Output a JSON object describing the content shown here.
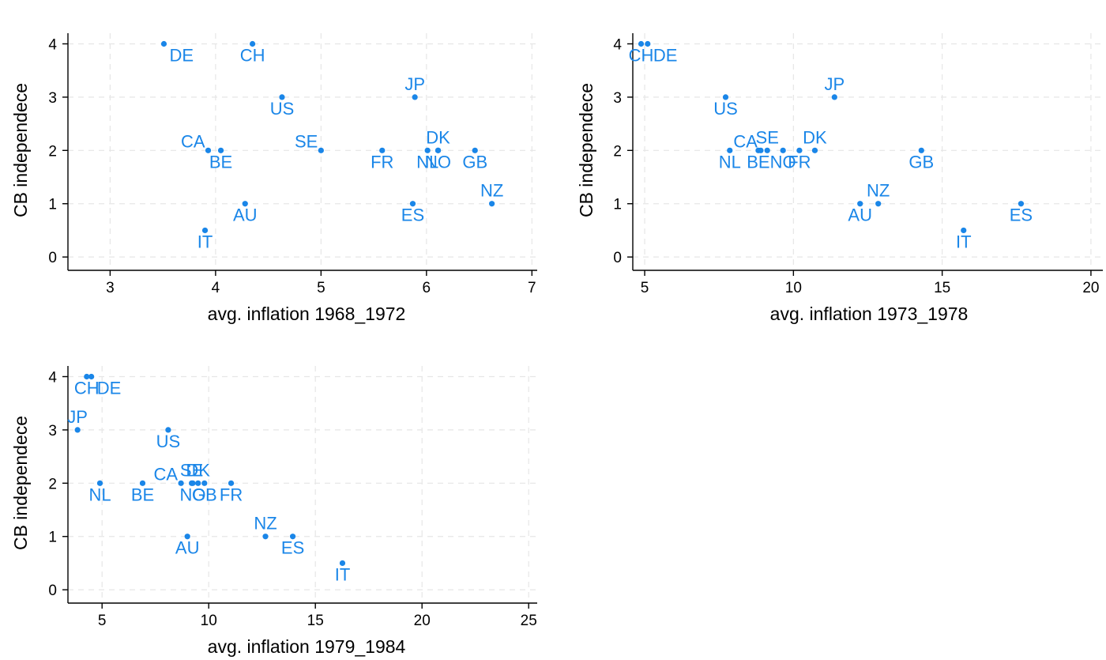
{
  "chart_data": [
    {
      "type": "scatter",
      "xlabel": "avg. inflation 1968_1972",
      "ylabel": "CB independece",
      "xlim": [
        2.6,
        7.05
      ],
      "ylim": [
        -0.25,
        4.2
      ],
      "xticks": [
        3,
        4,
        5,
        6,
        7
      ],
      "yticks": [
        0,
        1,
        2,
        3,
        4
      ],
      "points": [
        {
          "label": "DE",
          "x": 3.51,
          "y": 4,
          "pos": "below-right"
        },
        {
          "label": "CH",
          "x": 4.35,
          "y": 4,
          "pos": "below"
        },
        {
          "label": "JP",
          "x": 5.89,
          "y": 3,
          "pos": "above"
        },
        {
          "label": "US",
          "x": 4.63,
          "y": 3,
          "pos": "below"
        },
        {
          "label": "CA",
          "x": 3.93,
          "y": 2,
          "pos": "above-left"
        },
        {
          "label": "BE",
          "x": 4.05,
          "y": 2,
          "pos": "below"
        },
        {
          "label": "SE",
          "x": 5.0,
          "y": 2,
          "pos": "above-left"
        },
        {
          "label": "FR",
          "x": 5.58,
          "y": 2,
          "pos": "below"
        },
        {
          "label": "DK",
          "x": 6.11,
          "y": 2,
          "pos": "above"
        },
        {
          "label": "NL",
          "x": 6.01,
          "y": 2,
          "pos": "below"
        },
        {
          "label": "NO",
          "x": 6.11,
          "y": 2,
          "pos": "below"
        },
        {
          "label": "GB",
          "x": 6.46,
          "y": 2,
          "pos": "below"
        },
        {
          "label": "NZ",
          "x": 6.62,
          "y": 1,
          "pos": "above"
        },
        {
          "label": "AU",
          "x": 4.28,
          "y": 1,
          "pos": "below"
        },
        {
          "label": "ES",
          "x": 5.87,
          "y": 1,
          "pos": "below"
        },
        {
          "label": "IT",
          "x": 3.9,
          "y": 0.5,
          "pos": "below"
        }
      ]
    },
    {
      "type": "scatter",
      "xlabel": "avg. inflation 1973_1978",
      "ylabel": "CB independece",
      "xlim": [
        4.6,
        20.4
      ],
      "ylim": [
        -0.25,
        4.2
      ],
      "xticks": [
        5,
        10,
        15,
        20
      ],
      "yticks": [
        0,
        1,
        2,
        3,
        4
      ],
      "points": [
        {
          "label": "CH",
          "x": 4.88,
          "y": 4,
          "pos": "below"
        },
        {
          "label": "DE",
          "x": 5.1,
          "y": 4,
          "pos": "below-right"
        },
        {
          "label": "JP",
          "x": 11.38,
          "y": 3,
          "pos": "above"
        },
        {
          "label": "US",
          "x": 7.72,
          "y": 3,
          "pos": "below"
        },
        {
          "label": "CA",
          "x": 8.9,
          "y": 2,
          "pos": "above-left"
        },
        {
          "label": "SE",
          "x": 9.12,
          "y": 2,
          "pos": "above"
        },
        {
          "label": "DK",
          "x": 10.72,
          "y": 2,
          "pos": "above"
        },
        {
          "label": "NL",
          "x": 7.86,
          "y": 2,
          "pos": "below"
        },
        {
          "label": "BE",
          "x": 8.82,
          "y": 2,
          "pos": "below"
        },
        {
          "label": "NO",
          "x": 9.65,
          "y": 2,
          "pos": "below"
        },
        {
          "label": "FR",
          "x": 10.2,
          "y": 2,
          "pos": "below"
        },
        {
          "label": "GB",
          "x": 14.3,
          "y": 2,
          "pos": "below"
        },
        {
          "label": "NZ",
          "x": 12.85,
          "y": 1,
          "pos": "above"
        },
        {
          "label": "AU",
          "x": 12.24,
          "y": 1,
          "pos": "below"
        },
        {
          "label": "ES",
          "x": 17.65,
          "y": 1,
          "pos": "below"
        },
        {
          "label": "IT",
          "x": 15.72,
          "y": 0.5,
          "pos": "below"
        }
      ]
    },
    {
      "type": "scatter",
      "xlabel": "avg. inflation 1979_1984",
      "ylabel": "CB independece",
      "xlim": [
        3.4,
        25.4
      ],
      "ylim": [
        -0.25,
        4.2
      ],
      "xticks": [
        5,
        10,
        15,
        20,
        25
      ],
      "yticks": [
        0,
        1,
        2,
        3,
        4
      ],
      "points": [
        {
          "label": "CH",
          "x": 4.28,
          "y": 4,
          "pos": "below"
        },
        {
          "label": "DE",
          "x": 4.5,
          "y": 4,
          "pos": "below-right"
        },
        {
          "label": "JP",
          "x": 3.85,
          "y": 3,
          "pos": "above"
        },
        {
          "label": "US",
          "x": 8.1,
          "y": 3,
          "pos": "below"
        },
        {
          "label": "CA",
          "x": 8.7,
          "y": 2,
          "pos": "above-left"
        },
        {
          "label": "SE",
          "x": 9.2,
          "y": 2,
          "pos": "above"
        },
        {
          "label": "DK",
          "x": 9.5,
          "y": 2,
          "pos": "above"
        },
        {
          "label": "NL",
          "x": 4.9,
          "y": 2,
          "pos": "below"
        },
        {
          "label": "BE",
          "x": 6.9,
          "y": 2,
          "pos": "below"
        },
        {
          "label": "NO",
          "x": 9.25,
          "y": 2,
          "pos": "below"
        },
        {
          "label": "GB",
          "x": 9.8,
          "y": 2,
          "pos": "below"
        },
        {
          "label": "FR",
          "x": 11.05,
          "y": 2,
          "pos": "below"
        },
        {
          "label": "NZ",
          "x": 12.66,
          "y": 1,
          "pos": "above"
        },
        {
          "label": "AU",
          "x": 9.0,
          "y": 1,
          "pos": "below"
        },
        {
          "label": "ES",
          "x": 13.94,
          "y": 1,
          "pos": "below"
        },
        {
          "label": "IT",
          "x": 16.27,
          "y": 0.5,
          "pos": "below"
        }
      ]
    }
  ]
}
